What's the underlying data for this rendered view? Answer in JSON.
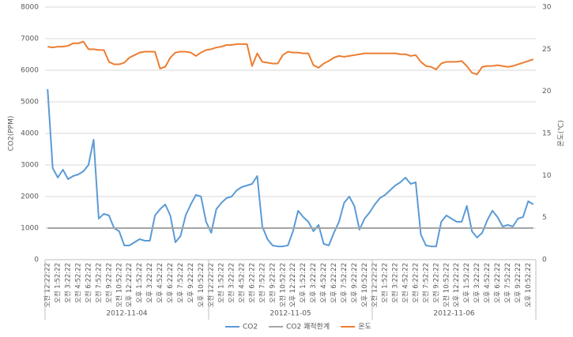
{
  "chart_data": {
    "type": "line",
    "ylabel": "CO2(PPM)",
    "y2label": "온도(℃)",
    "categories": [
      "오전 12:22:22",
      null,
      "오전 1:52:22",
      null,
      "오전 3:22:22",
      null,
      "오전 4:52:22",
      null,
      "오전 6:22:22",
      null,
      "오전 7:52:22",
      null,
      "오전 9:22:22",
      null,
      "오전 10:52:22",
      null,
      "오후 12:22:22",
      null,
      "오후 1:52:22",
      null,
      "오후 3:22:22",
      null,
      "오후 4:52:22",
      null,
      "오후 6:22:22",
      null,
      "오후 7:52:22",
      null,
      "오후 9:22:22",
      null,
      "오후 10:52:22",
      null,
      "오전 12:22:22",
      null,
      "오전 1:52:22",
      null,
      "오전 3:22:22",
      null,
      "오전 4:52:22",
      null,
      "오전 6:22:22",
      null,
      "오전 7:52:22",
      null,
      "오전 9:22:22",
      null,
      "오전 10:52:22",
      null,
      "오후 12:22:22",
      null,
      "오후 1:52:22",
      null,
      "오후 3:22:22",
      null,
      "오후 4:52:22",
      null,
      "오후 6:22:22",
      null,
      "오후 7:52:22",
      null,
      "오후 9:22:22",
      null,
      "오후 10:52:22",
      null,
      "오전 12:22:22",
      null,
      "오전 1:52:22",
      null,
      "오전 3:22:22",
      null,
      "오전 4:52:22",
      null,
      "오전 6:22:22",
      null,
      "오전 7:52:22",
      null,
      "오전 9:22:22",
      null,
      "오전 10:52:22",
      null,
      "오후 12:22:22",
      null,
      "오후 1:52:22",
      null,
      "오후 3:22:22",
      null,
      "오후 4:52:22",
      null,
      "오후 6:22:22",
      null,
      "오후 7:52:22",
      null,
      "오후 9:22:22",
      null,
      "오후 10:52:22",
      null
    ],
    "x_groups": [
      "2012-11-04",
      "2012-11-05",
      "2012-11-06"
    ],
    "series": [
      {
        "name": "CO2",
        "color": "#5b9bd5",
        "values": [
          5400,
          2900,
          2600,
          2850,
          2550,
          2650,
          2700,
          2800,
          3000,
          3800,
          1300,
          1450,
          1400,
          1000,
          900,
          450,
          450,
          550,
          650,
          600,
          600,
          1400,
          1600,
          1750,
          1400,
          550,
          750,
          1400,
          1750,
          2050,
          2000,
          1200,
          850,
          1600,
          1800,
          1950,
          2000,
          2200,
          2300,
          2350,
          2400,
          2650,
          1050,
          650,
          450,
          420,
          420,
          450,
          900,
          1550,
          1350,
          1200,
          900,
          1100,
          500,
          450,
          850,
          1200,
          1800,
          2000,
          1700,
          950,
          1300,
          1500,
          1750,
          1950,
          2050,
          2200,
          2350,
          2450,
          2600,
          2400,
          2450,
          800,
          450,
          420,
          420,
          1200,
          1400,
          1300,
          1200,
          1200,
          1700,
          900,
          700,
          850,
          1250,
          1550,
          1350,
          1050,
          1100,
          1050,
          1300,
          1350,
          1850,
          1750
        ]
      },
      {
        "name": "CO2 쾌적한계",
        "color": "#a5a5a5",
        "values": [
          1000,
          1000,
          1000,
          1000,
          1000,
          1000,
          1000,
          1000,
          1000,
          1000,
          1000,
          1000,
          1000,
          1000,
          1000,
          1000,
          1000,
          1000,
          1000,
          1000,
          1000,
          1000,
          1000,
          1000,
          1000,
          1000,
          1000,
          1000,
          1000,
          1000,
          1000,
          1000,
          1000,
          1000,
          1000,
          1000,
          1000,
          1000,
          1000,
          1000,
          1000,
          1000,
          1000,
          1000,
          1000,
          1000,
          1000,
          1000,
          1000,
          1000,
          1000,
          1000,
          1000,
          1000,
          1000,
          1000,
          1000,
          1000,
          1000,
          1000,
          1000,
          1000,
          1000,
          1000,
          1000,
          1000,
          1000,
          1000,
          1000,
          1000,
          1000,
          1000,
          1000,
          1000,
          1000,
          1000,
          1000,
          1000,
          1000,
          1000,
          1000,
          1000,
          1000,
          1000,
          1000,
          1000,
          1000,
          1000,
          1000,
          1000,
          1000,
          1000,
          1000,
          1000,
          1000,
          1000
        ]
      },
      {
        "name": "온도",
        "color": "#ed7d31",
        "axis": "y2",
        "values": [
          25.3,
          25.2,
          25.3,
          25.3,
          25.4,
          25.7,
          25.7,
          25.9,
          25.0,
          25.0,
          24.9,
          24.9,
          23.5,
          23.2,
          23.2,
          23.4,
          24.0,
          24.3,
          24.6,
          24.7,
          24.7,
          24.7,
          22.7,
          22.9,
          24.0,
          24.6,
          24.7,
          24.7,
          24.6,
          24.2,
          24.6,
          24.9,
          25.0,
          25.2,
          25.3,
          25.5,
          25.5,
          25.6,
          25.6,
          25.6,
          23.0,
          24.5,
          23.5,
          23.4,
          23.3,
          23.3,
          24.3,
          24.7,
          24.6,
          24.6,
          24.5,
          24.5,
          23.1,
          22.8,
          23.3,
          23.6,
          24.0,
          24.2,
          24.1,
          24.2,
          24.3,
          24.4,
          24.5,
          24.5,
          24.5,
          24.5,
          24.5,
          24.5,
          24.5,
          24.4,
          24.4,
          24.2,
          24.3,
          23.5,
          23.0,
          22.9,
          22.6,
          23.3,
          23.5,
          23.5,
          23.5,
          23.6,
          23.0,
          22.2,
          22.0,
          22.9,
          23.0,
          23.0,
          23.1,
          23.0,
          22.9,
          23.0,
          23.2,
          23.4,
          23.6,
          23.8
        ]
      }
    ],
    "ylim": [
      0,
      8000
    ],
    "yticks": [
      0,
      1000,
      2000,
      3000,
      4000,
      5000,
      6000,
      7000,
      8000
    ],
    "y2lim": [
      0,
      30
    ],
    "y2ticks": [
      0,
      5,
      10,
      15,
      20,
      25,
      30
    ],
    "grid": true,
    "legend": "bottom"
  }
}
